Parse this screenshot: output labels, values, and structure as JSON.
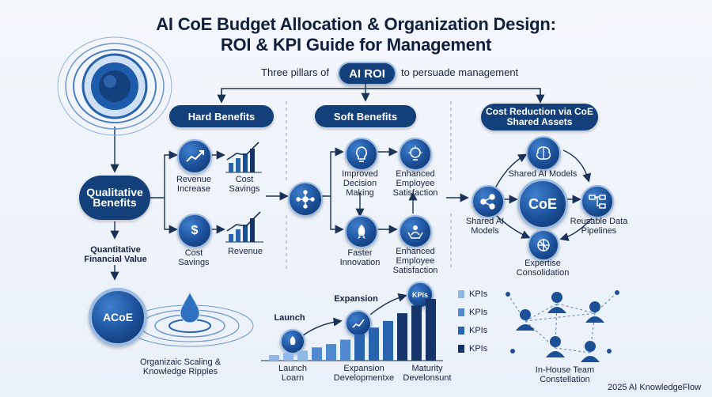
{
  "header": {
    "title_line1": "AI CoE Budget Allocation & Organization Design:",
    "title_line2": "ROI & KPI Guide for Management",
    "subtitle_left": "Three pillars of",
    "subtitle_badge": "AI ROI",
    "subtitle_right": "to persuade management"
  },
  "left": {
    "qualitative": "Qualitative Benefits",
    "quantitative": "Quantitative Financial Value",
    "acoe": "ACoE",
    "ripples": "Organizaic Scaling & Knowledge Ripples"
  },
  "hard": {
    "title": "Hard Benefits",
    "revenue_increase": "Revenue Increase",
    "cost_savings_top": "Cost Savings",
    "cost_savings_bottom": "Cost Savings",
    "revenue": "Revenue"
  },
  "soft": {
    "title": "Soft Benefits",
    "decision": "Improved Decision Making",
    "employee_top": "Enhanced Employee Satisfaction",
    "innovation": "Faster Innovation",
    "employee_bottom": "Enhanced Employee Satisfaction"
  },
  "cost": {
    "title": "Cost Reduction via CoE Shared Assets",
    "coe": "CoE",
    "shared_top": "Shared AI Models",
    "shared_left": "Shared AI Models",
    "pipelines": "Reusable Data Pipelines",
    "expertise": "Expertise Consolidation"
  },
  "growth": {
    "launch_top": "Launch",
    "expansion_top": "Expansion",
    "kpis_badge": "KPIs",
    "launch_bottom": "Launch Loarn",
    "expansion_bottom": "Expansion Developmentxe",
    "maturity_bottom": "Maturity Develonsunt",
    "bars": [
      10,
      14,
      18,
      24,
      30,
      38,
      48,
      60,
      72,
      86,
      100,
      112
    ],
    "legend": [
      "KPIs",
      "KPIs",
      "KPIs",
      "KPIs"
    ],
    "legend_colors": [
      "#8fb8e8",
      "#4f8ad0",
      "#2a63ad",
      "#14346a"
    ]
  },
  "team": {
    "label": "In-House Team Constellation"
  },
  "footer": {
    "credit": "2025 AI KnowledgeFlow"
  },
  "colors": {
    "navy": "#13407a",
    "accent": "#1f5fb0"
  }
}
